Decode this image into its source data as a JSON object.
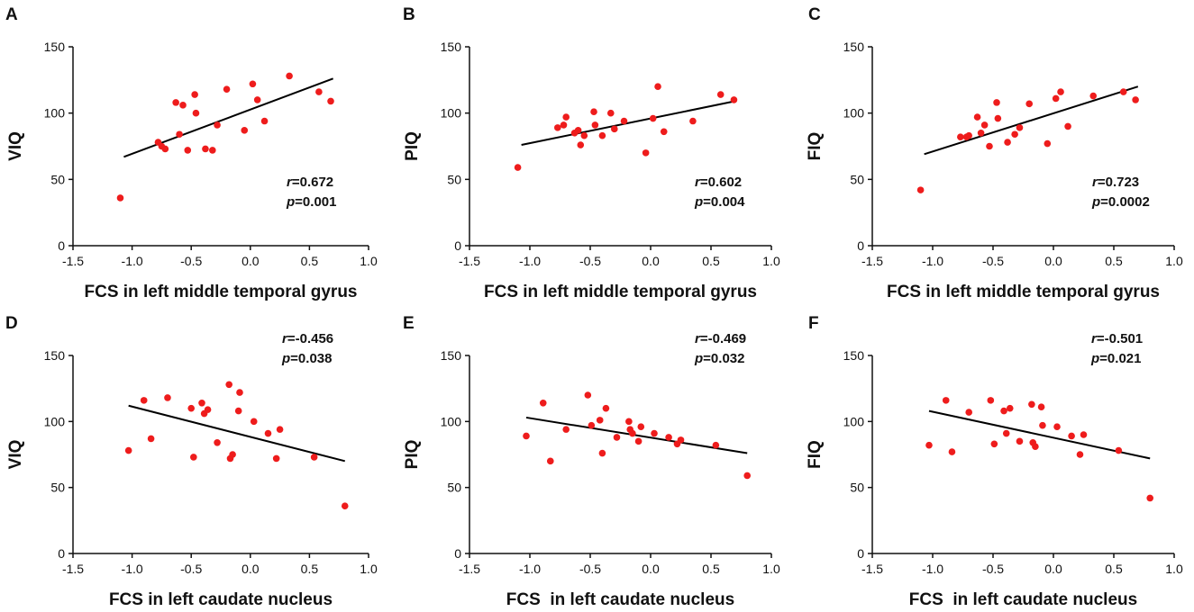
{
  "chart_data": [
    {
      "panel": "A",
      "type": "scatter",
      "ylabel": "VIQ",
      "xlabel": "FCS in left middle temporal gyrus",
      "xlim": [
        -1.5,
        1.0
      ],
      "ylim": [
        0,
        150
      ],
      "xticks": [
        "-1.5",
        "-1.0",
        "-0.5",
        "0.0",
        "0.5",
        "1.0"
      ],
      "yticks": [
        "0",
        "50",
        "100",
        "150"
      ],
      "r_label": "r",
      "r_value": "=0.672",
      "p_label": "p",
      "p_value": "=0.001",
      "points": [
        [
          -1.1,
          36
        ],
        [
          -0.78,
          78
        ],
        [
          -0.75,
          75
        ],
        [
          -0.72,
          73
        ],
        [
          -0.63,
          108
        ],
        [
          -0.6,
          84
        ],
        [
          -0.57,
          106
        ],
        [
          -0.53,
          72
        ],
        [
          -0.47,
          114
        ],
        [
          -0.46,
          100
        ],
        [
          -0.38,
          73
        ],
        [
          -0.32,
          72
        ],
        [
          -0.28,
          91
        ],
        [
          -0.2,
          118
        ],
        [
          -0.05,
          87
        ],
        [
          0.02,
          122
        ],
        [
          0.06,
          110
        ],
        [
          0.12,
          94
        ],
        [
          0.33,
          128
        ],
        [
          0.58,
          116
        ],
        [
          0.68,
          109
        ]
      ],
      "fit": [
        [
          -1.07,
          67
        ],
        [
          0.7,
          126
        ]
      ],
      "point_color": "#ee1c1c"
    },
    {
      "panel": "B",
      "type": "scatter",
      "ylabel": "PIQ",
      "xlabel": "FCS in left middle temporal gyrus",
      "xlim": [
        -1.5,
        1.0
      ],
      "ylim": [
        0,
        150
      ],
      "xticks": [
        "-1.5",
        "-1.0",
        "-0.5",
        "0.0",
        "0.5",
        "1.0"
      ],
      "yticks": [
        "0",
        "50",
        "100",
        "150"
      ],
      "r_label": "r",
      "r_value": "=0.602",
      "p_label": "p",
      "p_value": "=0.004",
      "points": [
        [
          -1.1,
          59
        ],
        [
          -0.77,
          89
        ],
        [
          -0.72,
          91
        ],
        [
          -0.7,
          97
        ],
        [
          -0.63,
          85
        ],
        [
          -0.6,
          87
        ],
        [
          -0.58,
          76
        ],
        [
          -0.55,
          83
        ],
        [
          -0.47,
          101
        ],
        [
          -0.46,
          91
        ],
        [
          -0.4,
          83
        ],
        [
          -0.33,
          100
        ],
        [
          -0.3,
          88
        ],
        [
          -0.22,
          94
        ],
        [
          -0.04,
          70
        ],
        [
          0.02,
          96
        ],
        [
          0.06,
          120
        ],
        [
          0.11,
          86
        ],
        [
          0.35,
          94
        ],
        [
          0.58,
          114
        ],
        [
          0.69,
          110
        ]
      ],
      "fit": [
        [
          -1.07,
          76
        ],
        [
          0.7,
          109
        ]
      ],
      "point_color": "#ee1c1c"
    },
    {
      "panel": "C",
      "type": "scatter",
      "ylabel": "FIQ",
      "xlabel": "FCS in left middle temporal gyrus",
      "xlim": [
        -1.5,
        1.0
      ],
      "ylim": [
        0,
        150
      ],
      "xticks": [
        "-1.5",
        "-1.0",
        "-0.5",
        "0.0",
        "0.5",
        "1.0"
      ],
      "yticks": [
        "0",
        "50",
        "100",
        "150"
      ],
      "r_label": "r",
      "r_value": "=0.723",
      "p_label": "p",
      "p_value": "=0.0002",
      "points": [
        [
          -1.1,
          42
        ],
        [
          -0.77,
          82
        ],
        [
          -0.72,
          82
        ],
        [
          -0.7,
          83
        ],
        [
          -0.63,
          97
        ],
        [
          -0.6,
          85
        ],
        [
          -0.57,
          91
        ],
        [
          -0.53,
          75
        ],
        [
          -0.47,
          108
        ],
        [
          -0.46,
          96
        ],
        [
          -0.38,
          78
        ],
        [
          -0.32,
          84
        ],
        [
          -0.28,
          89
        ],
        [
          -0.2,
          107
        ],
        [
          -0.05,
          77
        ],
        [
          0.02,
          111
        ],
        [
          0.06,
          116
        ],
        [
          0.12,
          90
        ],
        [
          0.33,
          113
        ],
        [
          0.58,
          116
        ],
        [
          0.68,
          110
        ]
      ],
      "fit": [
        [
          -1.07,
          69
        ],
        [
          0.7,
          120
        ]
      ],
      "point_color": "#ee1c1c"
    },
    {
      "panel": "D",
      "type": "scatter",
      "ylabel": "VIQ",
      "xlabel": "FCS in left caudate nucleus",
      "xlim": [
        -1.5,
        1.0
      ],
      "ylim": [
        0,
        150
      ],
      "xticks": [
        "-1.5",
        "-1.0",
        "-0.5",
        "0.0",
        "0.5",
        "1.0"
      ],
      "yticks": [
        "0",
        "50",
        "100",
        "150"
      ],
      "r_label": "r",
      "r_value": "=-0.456",
      "p_label": "p",
      "p_value": "=0.038",
      "points": [
        [
          -1.03,
          78
        ],
        [
          -0.9,
          116
        ],
        [
          -0.84,
          87
        ],
        [
          -0.7,
          118
        ],
        [
          -0.5,
          110
        ],
        [
          -0.48,
          73
        ],
        [
          -0.41,
          114
        ],
        [
          -0.39,
          106
        ],
        [
          -0.36,
          109
        ],
        [
          -0.28,
          84
        ],
        [
          -0.18,
          128
        ],
        [
          -0.17,
          72
        ],
        [
          -0.15,
          75
        ],
        [
          -0.1,
          108
        ],
        [
          -0.09,
          122
        ],
        [
          0.03,
          100
        ],
        [
          0.15,
          91
        ],
        [
          0.22,
          72
        ],
        [
          0.25,
          94
        ],
        [
          0.54,
          73
        ],
        [
          0.8,
          36
        ]
      ],
      "fit": [
        [
          -1.03,
          112
        ],
        [
          0.8,
          70
        ]
      ],
      "point_color": "#ee1c1c"
    },
    {
      "panel": "E",
      "type": "scatter",
      "ylabel": "PIQ",
      "xlabel": "FCS  in left caudate nucleus",
      "xlim": [
        -1.5,
        1.0
      ],
      "ylim": [
        0,
        150
      ],
      "xticks": [
        "-1.5",
        "-1.0",
        "-0.5",
        "0.0",
        "0.5",
        "1.0"
      ],
      "yticks": [
        "0",
        "50",
        "100",
        "150"
      ],
      "r_label": "r",
      "r_value": "=-0.469",
      "p_label": "p",
      "p_value": "=0.032",
      "points": [
        [
          -1.03,
          89
        ],
        [
          -0.89,
          114
        ],
        [
          -0.83,
          70
        ],
        [
          -0.7,
          94
        ],
        [
          -0.52,
          120
        ],
        [
          -0.49,
          97
        ],
        [
          -0.42,
          101
        ],
        [
          -0.4,
          76
        ],
        [
          -0.37,
          110
        ],
        [
          -0.28,
          88
        ],
        [
          -0.18,
          100
        ],
        [
          -0.17,
          94
        ],
        [
          -0.15,
          91
        ],
        [
          -0.1,
          85
        ],
        [
          -0.08,
          96
        ],
        [
          0.03,
          91
        ],
        [
          0.15,
          88
        ],
        [
          0.22,
          83
        ],
        [
          0.25,
          86
        ],
        [
          0.54,
          82
        ],
        [
          0.8,
          59
        ]
      ],
      "fit": [
        [
          -1.03,
          103
        ],
        [
          0.8,
          76
        ]
      ],
      "point_color": "#ee1c1c"
    },
    {
      "panel": "F",
      "type": "scatter",
      "ylabel": "FIQ",
      "xlabel": "FCS  in left caudate nucleus",
      "xlim": [
        -1.5,
        1.0
      ],
      "ylim": [
        0,
        150
      ],
      "xticks": [
        "-1.5",
        "-1.0",
        "-0.5",
        "0.0",
        "0.5",
        "1.0"
      ],
      "yticks": [
        "0",
        "50",
        "100",
        "150"
      ],
      "r_label": "r",
      "r_value": "=-0.501",
      "p_label": "p",
      "p_value": "=0.021",
      "points": [
        [
          -1.03,
          82
        ],
        [
          -0.89,
          116
        ],
        [
          -0.84,
          77
        ],
        [
          -0.7,
          107
        ],
        [
          -0.52,
          116
        ],
        [
          -0.49,
          83
        ],
        [
          -0.41,
          108
        ],
        [
          -0.39,
          91
        ],
        [
          -0.36,
          110
        ],
        [
          -0.28,
          85
        ],
        [
          -0.18,
          113
        ],
        [
          -0.17,
          84
        ],
        [
          -0.15,
          81
        ],
        [
          -0.1,
          111
        ],
        [
          -0.09,
          97
        ],
        [
          0.03,
          96
        ],
        [
          0.15,
          89
        ],
        [
          0.22,
          75
        ],
        [
          0.25,
          90
        ],
        [
          0.54,
          78
        ],
        [
          0.8,
          42
        ]
      ],
      "fit": [
        [
          -1.03,
          108
        ],
        [
          0.8,
          72
        ]
      ],
      "point_color": "#ee1c1c"
    }
  ]
}
